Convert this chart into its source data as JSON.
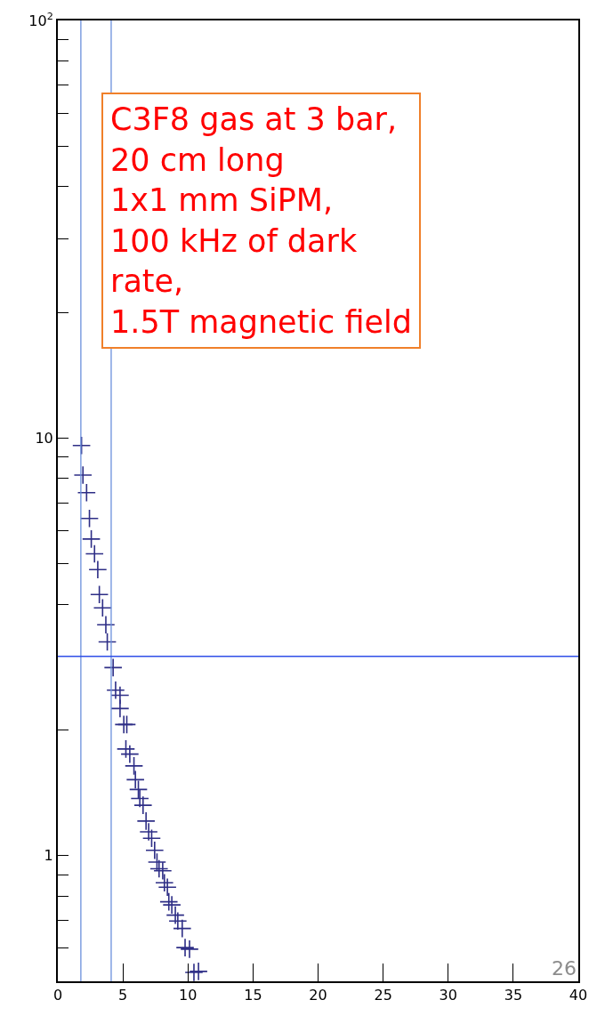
{
  "chart_data": {
    "type": "scatter",
    "marker": "cross",
    "legend": false,
    "log": "y",
    "x": [
      1.82,
      1.93,
      2.21,
      2.43,
      2.57,
      2.82,
      3.07,
      3.19,
      3.44,
      3.69,
      3.8,
      4.25,
      4.44,
      4.78,
      4.78,
      5.07,
      5.3,
      5.23,
      5.53,
      5.85,
      5.96,
      6.19,
      6.3,
      6.55,
      6.78,
      6.98,
      7.21,
      7.44,
      7.62,
      7.78,
      8.06,
      8.19,
      8.42,
      8.53,
      8.76,
      9.03,
      9.22,
      9.56,
      9.78,
      10.12,
      10.46,
      10.81
    ],
    "series": [
      {
        "color": "#2e2e86",
        "values": [
          9.6,
          8.15,
          7.4,
          6.42,
          5.73,
          5.28,
          4.84,
          4.22,
          3.92,
          3.57,
          3.25,
          2.82,
          2.49,
          2.42,
          2.25,
          2.06,
          2.06,
          1.8,
          1.75,
          1.64,
          1.52,
          1.44,
          1.37,
          1.32,
          1.21,
          1.14,
          1.1,
          1.03,
          0.965,
          0.93,
          0.92,
          0.861,
          0.84,
          0.775,
          0.762,
          0.72,
          0.697,
          0.669,
          0.602,
          0.597,
          0.525,
          0.528
        ]
      }
    ],
    "xlim": [
      0,
      40
    ],
    "xticks": [
      0,
      5,
      10,
      15,
      20,
      25,
      30,
      35,
      40
    ],
    "ylim": [
      0.5,
      100
    ],
    "yticks": [
      {
        "value": 0.6,
        "label": null
      },
      {
        "value": 0.7,
        "label": null
      },
      {
        "value": 0.8,
        "label": null
      },
      {
        "value": 0.9,
        "label": null
      },
      1,
      {
        "value": 2,
        "label": null
      },
      {
        "value": 3,
        "label": null
      },
      {
        "value": 4,
        "label": null
      },
      {
        "value": 5,
        "label": null
      },
      {
        "value": 6,
        "label": null
      },
      {
        "value": 7,
        "label": null
      },
      {
        "value": 8,
        "label": null
      },
      {
        "value": 9,
        "label": null
      },
      10,
      {
        "value": 20,
        "label": null
      },
      {
        "value": 30,
        "label": null
      },
      {
        "value": 40,
        "label": null
      },
      {
        "value": 50,
        "label": null
      },
      {
        "value": 60,
        "label": null
      },
      {
        "value": 70,
        "label": null
      },
      {
        "value": 80,
        "label": null
      },
      {
        "value": 90,
        "label": null
      },
      {
        "value": 100,
        "label": "10$^{2}$"
      }
    ],
    "ref_lines": [
      {
        "axis": "x",
        "value": 1.77,
        "color": "#6a8fdc"
      },
      {
        "axis": "x",
        "value": 4.1,
        "color": "#6a8fdc"
      },
      {
        "axis": "y",
        "value": 3.0,
        "color": "#2f4fe8"
      }
    ],
    "annotations": [
      "C3F8 gas at 3 bar,\n20 cm long\n1x1 mm SiPM,\n100 kHz of dark\nrate,\n1.5T magnetic field",
      "26"
    ]
  }
}
